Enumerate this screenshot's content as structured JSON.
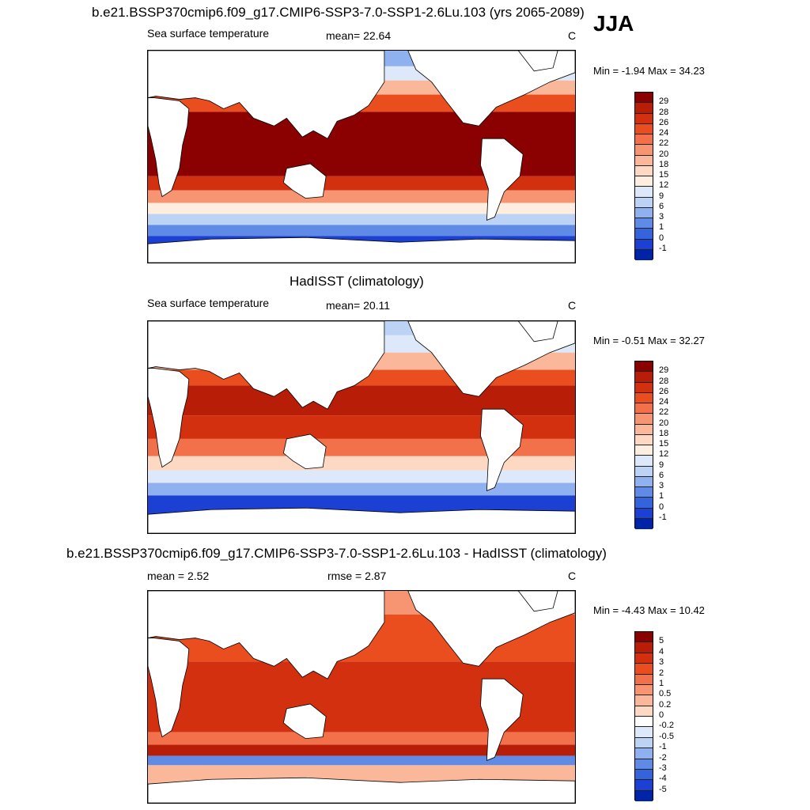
{
  "season": "JJA",
  "units": "C",
  "panels": [
    {
      "title": "b.e21.BSSP370cmip6.f09_g17.CMIP6-SSP3-7.0-SSP1-2.6Lu.103 (yrs 2065-2089)",
      "left_label": "Sea surface temperature",
      "stat_label": "mean=  22.64",
      "minmax": "Min =  -1.94 Max =  34.23",
      "colorbar_ticks": [
        "29",
        "28",
        "26",
        "24",
        "22",
        "20",
        "18",
        "15",
        "12",
        "9",
        "6",
        "3",
        "1",
        "0",
        "-1"
      ],
      "colors": [
        "#8b0000",
        "#b81d08",
        "#d33010",
        "#ea4e1e",
        "#f2704a",
        "#f79572",
        "#fbb79a",
        "#fdd8c3",
        "#fdeedf",
        "#dde9fb",
        "#bcd3f6",
        "#8fb1ef",
        "#5f8ae6",
        "#3463dc",
        "#1c3fd4",
        "#0024a8"
      ]
    },
    {
      "title": "HadISST (climatology)",
      "left_label": "Sea surface temperature",
      "stat_label": "mean=  20.11",
      "minmax": "Min =  -0.51 Max =  32.27",
      "colorbar_ticks": [
        "29",
        "28",
        "26",
        "24",
        "22",
        "20",
        "18",
        "15",
        "12",
        "9",
        "6",
        "3",
        "1",
        "0",
        "-1"
      ],
      "colors": [
        "#8b0000",
        "#b81d08",
        "#d33010",
        "#ea4e1e",
        "#f2704a",
        "#f79572",
        "#fbb79a",
        "#fdd8c3",
        "#fdeedf",
        "#dde9fb",
        "#bcd3f6",
        "#8fb1ef",
        "#5f8ae6",
        "#3463dc",
        "#1c3fd4",
        "#0024a8"
      ]
    },
    {
      "title": "b.e21.BSSP370cmip6.f09_g17.CMIP6-SSP3-7.0-SSP1-2.6Lu.103 - HadISST (climatology)",
      "left_label": "mean =   2.52",
      "stat_label": "rmse =   2.87",
      "minmax": "Min =  -4.43 Max =  10.42",
      "colorbar_ticks": [
        "5",
        "4",
        "3",
        "2",
        "1",
        "0.5",
        "0.2",
        "0",
        "-0.2",
        "-0.5",
        "-1",
        "-2",
        "-3",
        "-4",
        "-5"
      ],
      "colors": [
        "#8b0000",
        "#b81d08",
        "#d33010",
        "#ea4e1e",
        "#f2704a",
        "#f79572",
        "#fbb79a",
        "#fdd8c3",
        "#ffffff",
        "#dde9fb",
        "#bcd3f6",
        "#8fb1ef",
        "#5f8ae6",
        "#3463dc",
        "#1c3fd4",
        "#0024a8"
      ]
    }
  ]
}
